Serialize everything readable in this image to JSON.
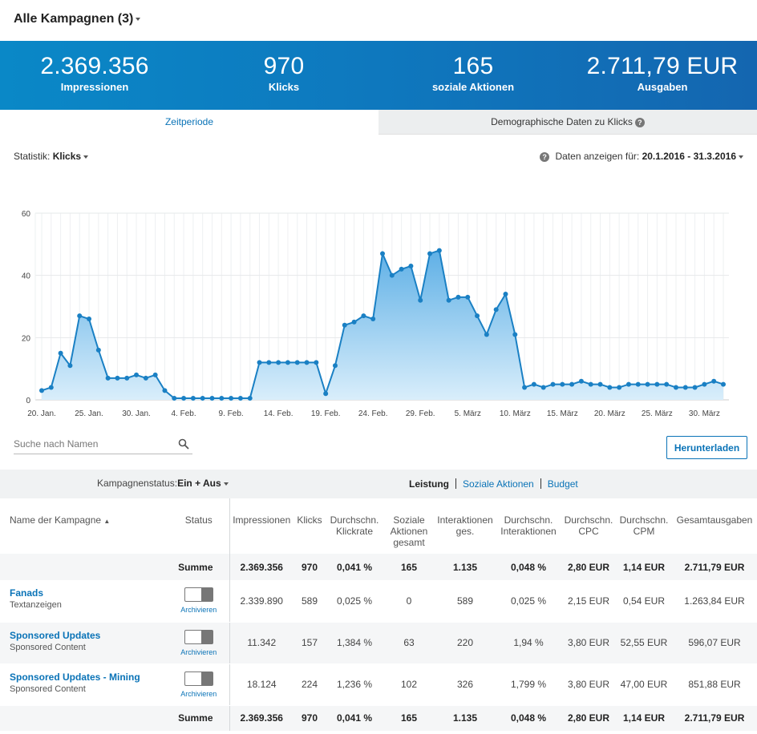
{
  "header": {
    "title": "Alle Kampagnen (3)"
  },
  "kpis": [
    {
      "value": "2.369.356",
      "label": "Impressionen"
    },
    {
      "value": "970",
      "label": "Klicks"
    },
    {
      "value": "165",
      "label": "soziale Aktionen"
    },
    {
      "value": "2.711,79 EUR",
      "label": "Ausgaben"
    }
  ],
  "tabs": {
    "active": "Zeitperiode",
    "inactive": "Demographische Daten zu Klicks"
  },
  "stat": {
    "label": "Statistik:",
    "value": "Klicks"
  },
  "date_range": {
    "label": "Daten anzeigen für:",
    "value": "20.1.2016 - 31.3.2016"
  },
  "chart_data": {
    "type": "area",
    "title": "",
    "xlabel": "",
    "ylabel": "",
    "ylim": [
      0,
      60
    ],
    "yticks": [
      0,
      20,
      40,
      60
    ],
    "x_start": "20. Jan.",
    "xtick_labels": [
      "20. Jan.",
      "25. Jan.",
      "30. Jan.",
      "4. Feb.",
      "9. Feb.",
      "14. Feb.",
      "19. Feb.",
      "24. Feb.",
      "29. Feb.",
      "5. März",
      "10. März",
      "15. März",
      "20. März",
      "25. März",
      "30. März"
    ],
    "grid": true,
    "color": "#1a80c4",
    "series": [
      {
        "values": [
          3,
          4,
          15,
          11,
          27,
          26,
          16,
          7,
          7,
          7,
          8,
          7,
          8,
          3,
          0.5,
          0.5,
          0.5,
          0.5,
          0.5,
          0.5,
          0.5,
          0.5,
          0.5,
          12,
          12,
          12,
          12,
          12,
          12,
          12,
          2,
          11,
          24,
          25,
          27,
          26,
          47,
          40,
          42,
          43,
          32,
          47,
          48,
          32,
          33,
          33,
          27,
          21,
          29,
          34,
          21,
          4,
          5,
          4,
          5,
          5,
          5,
          6,
          5,
          5,
          4,
          4,
          5,
          5,
          5,
          5,
          5,
          4,
          4,
          4,
          5,
          6,
          5
        ]
      }
    ]
  },
  "search": {
    "placeholder": "Suche nach Namen"
  },
  "download_label": "Herunterladen",
  "filter": {
    "label": "Kampagnenstatus:",
    "value": "Ein + Aus"
  },
  "view_tabs": [
    "Leistung",
    "Soziale Aktionen",
    "Budget"
  ],
  "table": {
    "headers": [
      "Name der Kampagne",
      "Status",
      "Impressionen",
      "Klicks",
      "Durchschn. Klickrate",
      "Soziale Aktionen gesamt",
      "Interaktionen ges.",
      "Durchschn. Interaktionen",
      "Durchschn. CPC",
      "Durchschn. CPM",
      "Gesamtausgaben"
    ],
    "sum_label": "Summe",
    "sum": [
      "2.369.356",
      "970",
      "0,041 %",
      "165",
      "1.135",
      "0,048 %",
      "2,80 EUR",
      "1,14 EUR",
      "2.711,79 EUR"
    ],
    "archive_label": "Archivieren",
    "rows": [
      {
        "name": "Fanads",
        "type": "Textanzeigen",
        "values": [
          "2.339.890",
          "589",
          "0,025 %",
          "0",
          "589",
          "0,025 %",
          "2,15 EUR",
          "0,54 EUR",
          "1.263,84 EUR"
        ]
      },
      {
        "name": "Sponsored Updates",
        "type": "Sponsored Content",
        "values": [
          "11.342",
          "157",
          "1,384 %",
          "63",
          "220",
          "1,94 %",
          "3,80 EUR",
          "52,55 EUR",
          "596,07 EUR"
        ]
      },
      {
        "name": "Sponsored Updates - Mining",
        "type": "Sponsored Content",
        "values": [
          "18.124",
          "224",
          "1,236 %",
          "102",
          "326",
          "1,799 %",
          "3,80 EUR",
          "47,00 EUR",
          "851,88 EUR"
        ]
      }
    ]
  }
}
